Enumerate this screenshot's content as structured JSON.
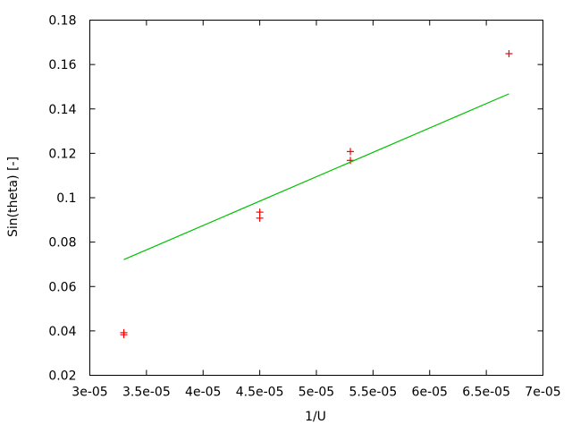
{
  "chart_data": {
    "type": "scatter",
    "title": "",
    "xlabel": "1/U",
    "ylabel": "Sin(theta) [-]",
    "xlim": [
      3e-05,
      7e-05
    ],
    "ylim": [
      0.02,
      0.18
    ],
    "grid": false,
    "x_ticks": [
      "3e-05",
      "3.5e-05",
      "4e-05",
      "4.5e-05",
      "5e-05",
      "5.5e-05",
      "6e-05",
      "6.5e-05",
      "7e-05"
    ],
    "y_ticks": [
      "0.02",
      "0.04",
      "0.06",
      "0.08",
      "0.1",
      "0.12",
      "0.14",
      "0.16",
      "0.18"
    ],
    "series": [
      {
        "type": "scatter",
        "marker": "plus",
        "color": "#ff0000",
        "points": [
          [
            3.3e-05,
            0.0392
          ],
          [
            3.3e-05,
            0.0383
          ],
          [
            4.5e-05,
            0.0935
          ],
          [
            4.5e-05,
            0.0908
          ],
          [
            5.3e-05,
            0.1208
          ],
          [
            5.3e-05,
            0.1168
          ],
          [
            6.7e-05,
            0.1649
          ]
        ]
      },
      {
        "type": "line",
        "color": "#00c000",
        "points": [
          [
            3.3e-05,
            0.0721
          ],
          [
            6.7e-05,
            0.1468
          ]
        ]
      }
    ]
  }
}
